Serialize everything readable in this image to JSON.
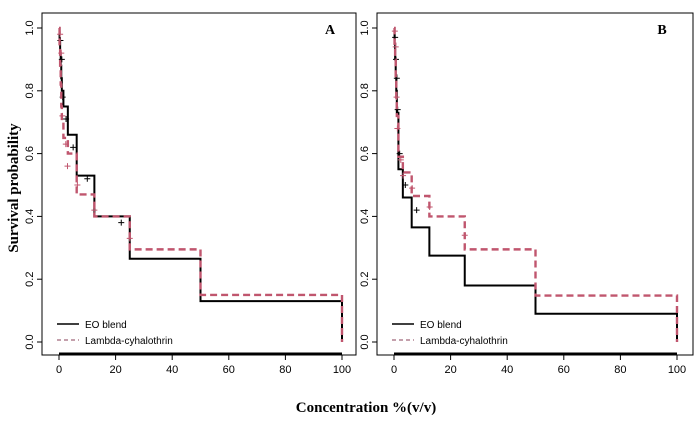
{
  "figure": {
    "ylabel": "Survival probability",
    "xlabel": "Concentration %(v/v)"
  },
  "colors": {
    "eo": "#000000",
    "lambda": "#c0566e",
    "frame": "#000000"
  },
  "chart_data": [
    {
      "type": "line",
      "panel_label": "A",
      "xlim": [
        0,
        100
      ],
      "ylim": [
        0,
        1
      ],
      "xticks": [
        "0",
        "20",
        "40",
        "60",
        "80",
        "100"
      ],
      "yticks": [
        "0.0",
        "0.2",
        "0.4",
        "0.6",
        "0.8",
        "1.0"
      ],
      "legend": {
        "position": "bottom-left",
        "entries": [
          "EO blend",
          "Lambda-cyhalothrin"
        ]
      },
      "series": [
        {
          "name": "EO blend",
          "style": "solid-step",
          "x": [
            0,
            0.2,
            0.4,
            0.6,
            0.8,
            1.0,
            1.56,
            3.125,
            6.25,
            12.5,
            25,
            50,
            100
          ],
          "y": [
            1.0,
            0.96,
            0.92,
            0.88,
            0.84,
            0.8,
            0.75,
            0.66,
            0.53,
            0.4,
            0.265,
            0.13,
            0.0
          ],
          "censor_marks": [
            [
              0.5,
              0.96
            ],
            [
              1.0,
              0.9
            ],
            [
              1.3,
              0.78
            ],
            [
              2.5,
              0.71
            ],
            [
              5,
              0.62
            ],
            [
              10,
              0.52
            ],
            [
              22,
              0.38
            ]
          ]
        },
        {
          "name": "Lambda-cyhalothrin",
          "style": "dashed-step",
          "x": [
            0,
            0.2,
            0.4,
            0.6,
            0.8,
            1.0,
            1.56,
            3.125,
            6.25,
            12.5,
            25,
            50,
            100
          ],
          "y": [
            1.0,
            0.94,
            0.88,
            0.82,
            0.75,
            0.7,
            0.65,
            0.6,
            0.47,
            0.4,
            0.295,
            0.15,
            0.0
          ],
          "censor_marks": [
            [
              0.4,
              0.98
            ],
            [
              0.8,
              0.92
            ],
            [
              1.2,
              0.72
            ],
            [
              2.4,
              0.63
            ],
            [
              3.0,
              0.56
            ],
            [
              6.5,
              0.5
            ],
            [
              12.5,
              0.42
            ],
            [
              25,
              0.33
            ]
          ]
        }
      ]
    },
    {
      "type": "line",
      "panel_label": "B",
      "xlim": [
        0,
        100
      ],
      "ylim": [
        0,
        1
      ],
      "xticks": [
        "0",
        "20",
        "40",
        "60",
        "80",
        "100"
      ],
      "yticks": [
        "0.0",
        "0.2",
        "0.4",
        "0.6",
        "0.8",
        "1.0"
      ],
      "legend": {
        "position": "bottom-left",
        "entries": [
          "EO blend",
          "Lambda-cyhalothrin"
        ]
      },
      "series": [
        {
          "name": "EO blend",
          "style": "solid-step",
          "x": [
            0,
            0.2,
            0.4,
            0.6,
            0.8,
            1.0,
            1.56,
            3.125,
            6.25,
            12.5,
            25,
            50,
            100
          ],
          "y": [
            1.0,
            0.95,
            0.9,
            0.85,
            0.8,
            0.73,
            0.55,
            0.46,
            0.365,
            0.275,
            0.18,
            0.09,
            0.0
          ],
          "censor_marks": [
            [
              0.4,
              0.97
            ],
            [
              0.7,
              0.9
            ],
            [
              1.0,
              0.84
            ],
            [
              1.3,
              0.74
            ],
            [
              2,
              0.6
            ],
            [
              4,
              0.5
            ],
            [
              8,
              0.42
            ]
          ]
        },
        {
          "name": "Lambda-cyhalothrin",
          "style": "dashed-step",
          "x": [
            0,
            0.2,
            0.4,
            0.6,
            0.8,
            1.0,
            1.56,
            3.125,
            6.25,
            12.5,
            25,
            50,
            100
          ],
          "y": [
            1.0,
            0.95,
            0.9,
            0.84,
            0.77,
            0.72,
            0.59,
            0.54,
            0.465,
            0.4,
            0.295,
            0.148,
            0.0
          ],
          "censor_marks": [
            [
              0.3,
              0.99
            ],
            [
              0.6,
              0.94
            ],
            [
              0.9,
              0.78
            ],
            [
              1.2,
              0.68
            ],
            [
              2.4,
              0.58
            ],
            [
              3.2,
              0.53
            ],
            [
              6.4,
              0.49
            ],
            [
              12.6,
              0.43
            ],
            [
              25,
              0.34
            ]
          ]
        }
      ]
    }
  ]
}
